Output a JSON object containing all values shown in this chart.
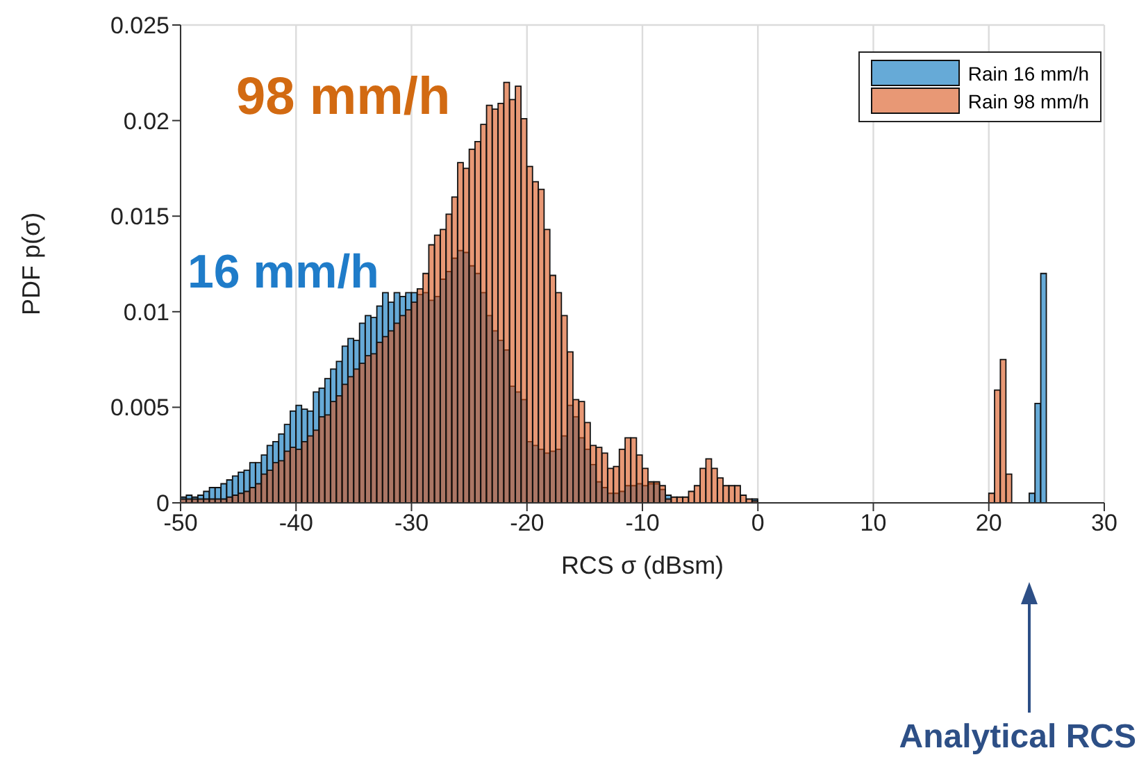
{
  "chart_data": {
    "type": "histogram",
    "xlabel": "RCS σ (dBsm)",
    "ylabel": "PDF p(σ)",
    "bins": [
      -50,
      -49.5,
      -49,
      -48.5,
      -48,
      -47.5,
      -47,
      -46.5,
      -46,
      -45.5,
      -45,
      -44.5,
      -44,
      -43.5,
      -43,
      -42.5,
      -42,
      -41.5,
      -41,
      -40.5,
      -40,
      -39.5,
      -39,
      -38.5,
      -38,
      -37.5,
      -37,
      -36.5,
      -36,
      -35.5,
      -35,
      -34.5,
      -34,
      -33.5,
      -33,
      -32.5,
      -32,
      -31.5,
      -31,
      -30.5,
      -30,
      -29.5,
      -29,
      -28.5,
      -28,
      -27.5,
      -27,
      -26.5,
      -26,
      -25.5,
      -25,
      -24.5,
      -24,
      -23.5,
      -23,
      -22.5,
      -22,
      -21.5,
      -21,
      -20.5,
      -20,
      -19.5,
      -19,
      -18.5,
      -18,
      -17.5,
      -17,
      -16.5,
      -16,
      -15.5,
      -15,
      -14.5,
      -14,
      -13.5,
      -13,
      -12.5,
      -12,
      -11.5,
      -11,
      -10.5,
      -10,
      -9.5,
      -9,
      -8.5,
      -8,
      -7.5,
      -7,
      -6.5,
      -6,
      -5.5,
      -5,
      -4.5,
      -4,
      -3.5,
      -3,
      -2.5,
      -2,
      -1.5,
      -1,
      -0.5,
      0,
      0.5,
      1,
      1.5,
      2,
      2.5,
      3,
      3.5,
      4,
      4.5,
      5,
      5.5,
      6,
      6.5,
      7,
      7.5,
      8,
      8.5,
      9,
      9.5,
      10,
      10.5,
      11,
      11.5,
      12,
      12.5,
      13,
      13.5,
      14,
      14.5,
      15,
      15.5,
      16,
      16.5,
      17,
      17.5,
      18,
      18.5,
      19,
      19.5,
      20,
      20.5,
      21,
      21.5,
      22,
      22.5,
      23,
      23.5,
      24,
      24.5,
      25,
      25.5,
      26,
      26.5,
      27,
      27.5,
      28,
      28.5,
      29,
      29.5,
      30
    ],
    "series": [
      {
        "name": "Rain 16 mm/h",
        "color": "#66aad7",
        "values": [
          0.0003,
          0.0004,
          0.0003,
          0.0004,
          0.0006,
          0.0008,
          0.0008,
          0.001,
          0.0012,
          0.0014,
          0.0016,
          0.0017,
          0.0021,
          0.0021,
          0.0025,
          0.003,
          0.0032,
          0.0036,
          0.0041,
          0.0048,
          0.0051,
          0.0049,
          0.0048,
          0.0058,
          0.006,
          0.0065,
          0.007,
          0.0074,
          0.0082,
          0.0086,
          0.0085,
          0.0094,
          0.0098,
          0.0097,
          0.0103,
          0.011,
          0.0105,
          0.011,
          0.0108,
          0.011,
          0.011,
          0.0109,
          0.011,
          0.0106,
          0.0108,
          0.0117,
          0.0121,
          0.0128,
          0.0132,
          0.0131,
          0.0124,
          0.012,
          0.011,
          0.0098,
          0.009,
          0.0085,
          0.008,
          0.0061,
          0.0058,
          0.0054,
          0.0032,
          0.003,
          0.0028,
          0.0026,
          0.0027,
          0.0028,
          0.0035,
          0.0051,
          0.0045,
          0.0034,
          0.0028,
          0.002,
          0.0011,
          0.0008,
          0.0005,
          0.0005,
          0.0006,
          0.0009,
          0.0009,
          0.001,
          0.0009,
          0.001,
          0.001,
          0.0007,
          0.0004,
          null,
          null,
          null,
          null,
          null,
          null,
          null,
          null,
          null,
          null,
          null,
          null,
          null,
          null,
          0.0002,
          0,
          0,
          0,
          0,
          0,
          0,
          0,
          0,
          0,
          0,
          0,
          0,
          0,
          0,
          0,
          0,
          0,
          0,
          0,
          0,
          0,
          0,
          0,
          0,
          0,
          0,
          0,
          0,
          0,
          0,
          0,
          0,
          0,
          0,
          0,
          0,
          0,
          0,
          0,
          0,
          0,
          0,
          0,
          0,
          0,
          0,
          0,
          0.0005,
          0.0052,
          0.012,
          0,
          0,
          0,
          0,
          0,
          0,
          0,
          0,
          0,
          0
        ]
      },
      {
        "name": "Rain 98 mm/h",
        "color": "#e89875",
        "values": [
          0.0002,
          0.0002,
          0.0002,
          0.0002,
          0.0002,
          0.0002,
          0.0002,
          0.0002,
          0.0003,
          0.0004,
          0.0005,
          0.0006,
          0.0008,
          0.001,
          0.0015,
          0.0017,
          0.0021,
          0.0022,
          0.0027,
          0.0029,
          0.0028,
          0.0032,
          0.0035,
          0.0038,
          0.0045,
          0.0046,
          0.0053,
          0.0056,
          0.0062,
          0.0066,
          0.007,
          0.0073,
          0.0077,
          0.0078,
          0.0084,
          0.0087,
          0.009,
          0.0094,
          0.0098,
          0.0101,
          0.0105,
          0.0112,
          0.012,
          0.0135,
          0.014,
          0.0143,
          0.0151,
          0.016,
          0.0178,
          0.0175,
          0.0185,
          0.0189,
          0.0198,
          0.0208,
          0.0206,
          0.0209,
          0.022,
          0.0211,
          0.0218,
          0.0201,
          0.0176,
          0.0168,
          0.0164,
          0.0143,
          0.0119,
          0.011,
          0.0098,
          0.0079,
          0.0054,
          0.0053,
          0.0042,
          0.003,
          0.0029,
          0.0026,
          0.0018,
          0.0019,
          0.0028,
          0.0034,
          0.0034,
          0.0025,
          0.0018,
          0.0011,
          0.0011,
          0.0009,
          0.0002,
          0.0003,
          0.0003,
          0.0003,
          0.0006,
          0.0009,
          0.0018,
          0.0023,
          0.0018,
          0.0013,
          0.0009,
          0.0009,
          0.0009,
          0.0004,
          0.0002,
          0.0001,
          0,
          0,
          0,
          0,
          0,
          0,
          0,
          0,
          0,
          0,
          0,
          0,
          0,
          0,
          0,
          0,
          0,
          0,
          0,
          0,
          0,
          0,
          0,
          0,
          0,
          0,
          0,
          0,
          0,
          0,
          0,
          0,
          0,
          0,
          0,
          0,
          0,
          0,
          0,
          0,
          0.0005,
          0.0059,
          0.0075,
          0.0015,
          0,
          0,
          0,
          0,
          0,
          0,
          0,
          0,
          0,
          0,
          0,
          0,
          0,
          0,
          0,
          0
        ]
      }
    ],
    "xlim": [
      -50,
      30
    ],
    "xticks": [
      -50,
      -40,
      -30,
      -20,
      -10,
      0,
      10,
      20,
      30
    ],
    "ylim": [
      0,
      0.025
    ],
    "yticks": [
      0,
      0.005,
      0.01,
      0.015,
      0.02,
      0.025
    ],
    "annotations": [
      "98 mm/h",
      "16 mm/h",
      "Analytical RCS"
    ],
    "grid": true,
    "legend": "top right"
  }
}
